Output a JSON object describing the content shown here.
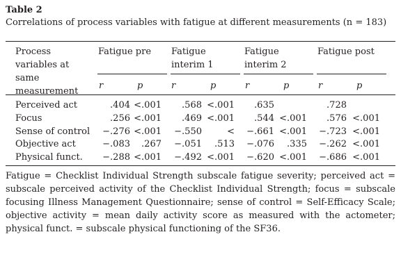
{
  "caption": {
    "label": "Table 2",
    "text": "Correlations of process variables with fatigue at different measurements (n = 183)"
  },
  "header": {
    "row_label": "Process variables at same measurement",
    "groups": [
      "Fatigue pre",
      "Fatigue interim 1",
      "Fatigue interim 2",
      "Fatigue post"
    ],
    "sub": [
      "r",
      "p"
    ]
  },
  "rows": [
    {
      "label": "Perceived act",
      "values": [
        ".404",
        "<.001",
        ".568",
        "<.001",
        ".635",
        "",
        ".728",
        ""
      ]
    },
    {
      "label": "Focus",
      "values": [
        ".256",
        "<.001",
        ".469",
        "<.001",
        ".544",
        "<.001",
        ".576",
        "<.001"
      ]
    },
    {
      "label": "Sense of control",
      "values": [
        "−.276",
        "<.001",
        "−.550",
        "<",
        "−.661",
        "<.001",
        "−.723",
        "<.001"
      ]
    },
    {
      "label": "Objective act",
      "values": [
        "−.083",
        ".267",
        "−.051",
        ".513",
        "−.076",
        ".335",
        "−.262",
        "<.001"
      ]
    },
    {
      "label": "Physical funct.",
      "values": [
        "−.288",
        "<.001",
        "−.492",
        "<.001",
        "−.620",
        "<.001",
        "−.686",
        "<.001"
      ]
    }
  ],
  "footnote": "Fatigue = Checklist Individual Strength subscale fatigue severity; perceived act = subscale perceived activity of the Checklist Individual Strength; focus = subscale focusing Illness Management Questionnaire; sense of control = Self-Efficacy Scale; objective activity = mean daily activity score as measured with the actometer; physical funct. = subscale physical functioning of the SF36."
}
